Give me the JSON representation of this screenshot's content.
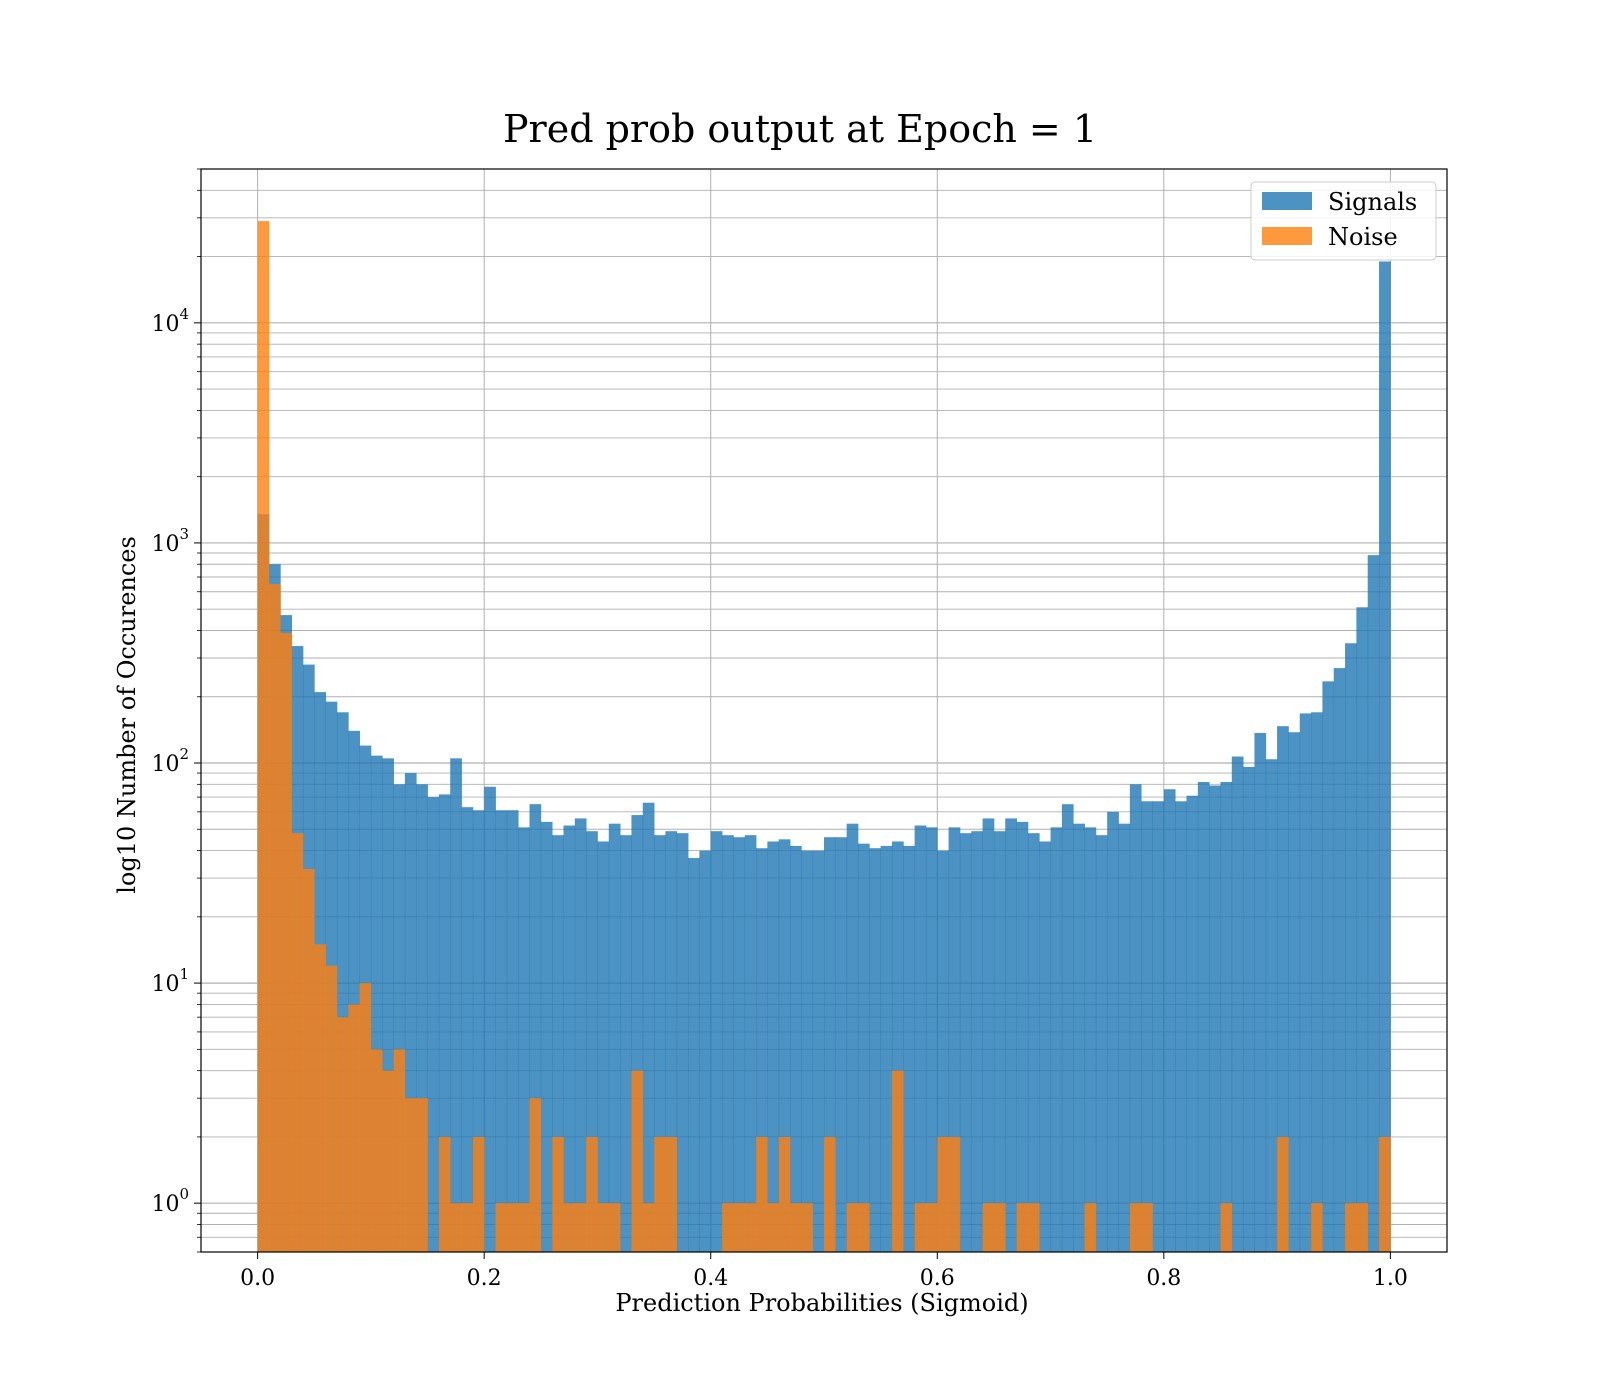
{
  "chart_data": {
    "type": "bar",
    "title": "Pred prob output at Epoch = 1",
    "xlabel": "Prediction Probabilities (Sigmoid)",
    "ylabel": "log10 Number of Occurences",
    "log_y": true,
    "xlim": [
      -0.05,
      1.05
    ],
    "ylim": [
      0.6,
      50000
    ],
    "x_ticks": [
      "0.0",
      "0.2",
      "0.4",
      "0.6",
      "0.8",
      "1.0"
    ],
    "y_ticks": [
      {
        "base": "10",
        "exp": "0"
      },
      {
        "base": "10",
        "exp": "1"
      },
      {
        "base": "10",
        "exp": "2"
      },
      {
        "base": "10",
        "exp": "3"
      },
      {
        "base": "10",
        "exp": "4"
      }
    ],
    "grid": true,
    "legend_position": "top-right",
    "bin_width": 0.01,
    "bin_start": 0.0,
    "series": [
      {
        "name": "Signals",
        "color": "#1f77b4",
        "alpha": 0.8,
        "values": [
          1350,
          800,
          470,
          340,
          280,
          210,
          190,
          170,
          140,
          120,
          108,
          105,
          80,
          90,
          80,
          70,
          72,
          105,
          63,
          61,
          78,
          61,
          61,
          51,
          65,
          54,
          47,
          52,
          56,
          49,
          44,
          53,
          47,
          58,
          66,
          47,
          49,
          48,
          37,
          40,
          49,
          47,
          46,
          47,
          41,
          44,
          45,
          42,
          40,
          40,
          46,
          46,
          53,
          43,
          41,
          42,
          44,
          42,
          52,
          51,
          40,
          51,
          48,
          49,
          56,
          49,
          56,
          54,
          48,
          44,
          51,
          65,
          53,
          51,
          47,
          60,
          53,
          80,
          67,
          67,
          76,
          67,
          71,
          82,
          79,
          82,
          107,
          96,
          137,
          104,
          147,
          138,
          168,
          170,
          235,
          270,
          350,
          510,
          880,
          19000
        ]
      },
      {
        "name": "Noise",
        "color": "#ff7f0e",
        "alpha": 0.8,
        "values": [
          29000,
          650,
          390,
          48,
          33,
          15,
          12,
          7,
          8,
          10,
          5,
          4,
          5,
          3,
          3,
          0,
          2,
          1,
          1,
          2,
          0,
          1,
          1,
          1,
          3,
          0,
          2,
          1,
          1,
          2,
          1,
          1,
          0,
          4,
          1,
          2,
          2,
          0,
          0,
          0,
          0,
          1,
          1,
          1,
          2,
          1,
          2,
          1,
          1,
          0,
          2,
          0,
          1,
          1,
          0,
          0,
          4,
          0,
          1,
          1,
          2,
          2,
          0,
          0,
          1,
          1,
          0,
          1,
          1,
          0,
          0,
          0,
          0,
          1,
          0,
          0,
          0,
          1,
          1,
          0,
          0,
          0,
          0,
          0,
          0,
          1,
          0,
          0,
          0,
          0,
          2,
          0,
          0,
          1,
          0,
          0,
          1,
          1,
          0,
          2
        ]
      }
    ]
  }
}
